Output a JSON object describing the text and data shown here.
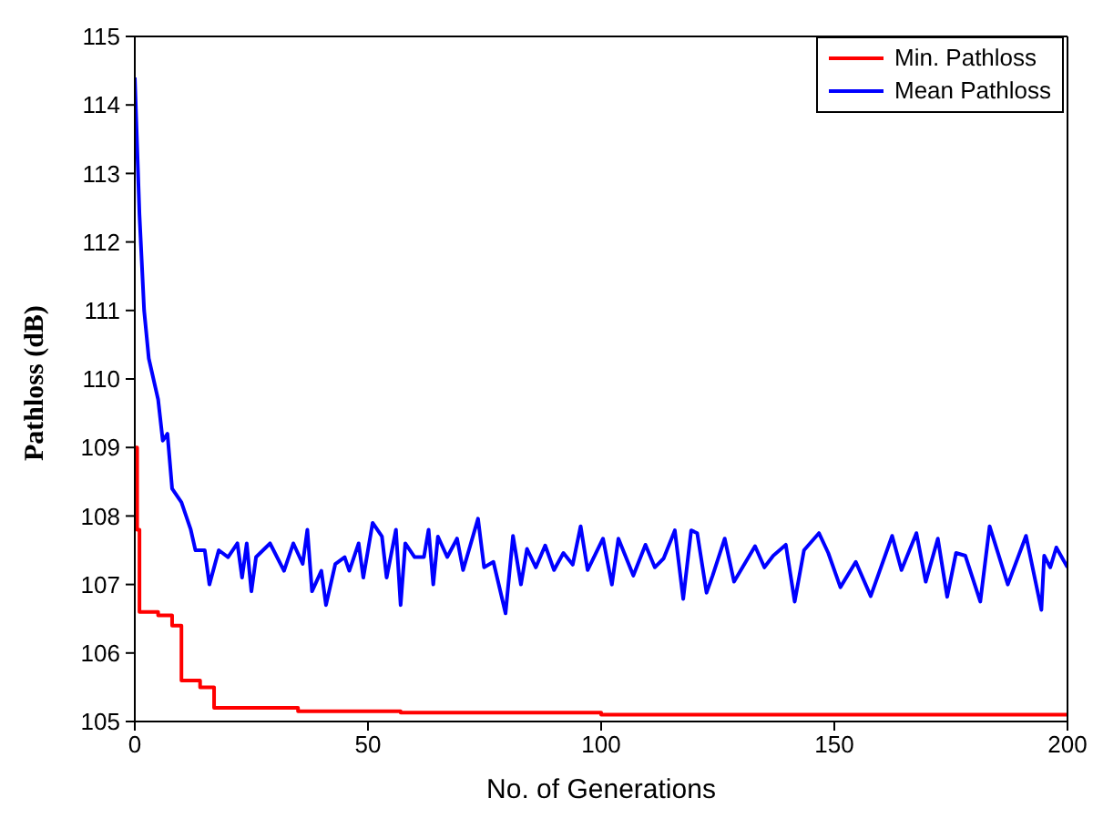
{
  "chart_data": {
    "type": "line",
    "xlabel": "No. of Generations",
    "ylabel": "Pathloss (dB)",
    "xlim": [
      0,
      200
    ],
    "xticks": [
      0,
      50,
      100,
      150,
      200
    ],
    "ylim": [
      105,
      115
    ],
    "yticks": [
      105,
      106,
      107,
      108,
      109,
      110,
      111,
      112,
      113,
      114,
      115
    ],
    "grid": false,
    "legend": "top right",
    "marker": "none",
    "line_style": "solid",
    "series": [
      {
        "name": "Min. Pathloss",
        "type": "step",
        "color": "#ff0000",
        "x": [
          0,
          0.5,
          1,
          5,
          8,
          10,
          14,
          17,
          35,
          57,
          100,
          200
        ],
        "values": [
          109,
          107.8,
          106.6,
          106.55,
          106.4,
          105.6,
          105.5,
          105.2,
          105.15,
          105.13,
          105.1,
          105.1
        ]
      },
      {
        "name": "Mean Pathloss",
        "color": "#0000ff",
        "x": [
          0,
          0.5,
          1,
          2,
          3,
          5,
          6,
          7,
          8,
          10,
          12,
          13,
          15,
          16,
          18,
          20,
          22,
          23,
          24,
          25,
          26,
          29,
          32,
          34,
          36,
          37,
          38,
          40,
          41,
          43,
          45,
          46,
          48,
          49,
          51,
          53,
          54,
          56,
          57,
          58,
          60,
          62,
          63,
          64,
          65,
          67,
          69.1,
          70.4,
          73.6,
          74.9,
          76.9,
          79.5,
          81.1,
          82.8,
          84.1,
          86,
          88,
          89.9,
          91.9,
          93.9,
          95.6,
          97.1,
          100.4,
          102.3,
          103.7,
          106.9,
          109.5,
          111.5,
          113.4,
          115.8,
          117.6,
          119.3,
          120.6,
          122.6,
          123.9,
          126.5,
          128.5,
          133,
          135,
          136.9,
          139.6,
          141.5,
          143.5,
          146.7,
          148.7,
          151.3,
          154.6,
          157.8,
          162.4,
          164.4,
          167.6,
          169.6,
          172.2,
          174.2,
          176.1,
          178.1,
          181.3,
          183.3,
          187.2,
          191.1,
          194.4,
          195,
          196.3,
          197.6,
          200
        ],
        "values": [
          114.4,
          113.4,
          112.4,
          111,
          110.3,
          109.7,
          109.1,
          109.2,
          108.4,
          108.2,
          107.8,
          107.5,
          107.5,
          107,
          107.5,
          107.4,
          107.6,
          107.1,
          107.6,
          106.9,
          107.4,
          107.6,
          107.2,
          107.6,
          107.3,
          107.8,
          106.9,
          107.2,
          106.7,
          107.3,
          107.4,
          107.2,
          107.6,
          107.1,
          107.9,
          107.7,
          107.1,
          107.8,
          106.7,
          107.6,
          107.4,
          107.4,
          107.8,
          107,
          107.7,
          107.4,
          107.67,
          107.21,
          107.96,
          107.25,
          107.33,
          106.58,
          107.71,
          107,
          107.52,
          107.25,
          107.57,
          107.21,
          107.46,
          107.29,
          107.85,
          107.21,
          107.67,
          107,
          107.67,
          107.13,
          107.58,
          107.25,
          107.38,
          107.79,
          106.79,
          107.79,
          107.75,
          106.88,
          107.13,
          107.67,
          107.04,
          107.56,
          107.25,
          107.42,
          107.58,
          106.75,
          107.5,
          107.75,
          107.46,
          106.96,
          107.33,
          106.83,
          107.71,
          107.21,
          107.75,
          107.04,
          107.67,
          106.82,
          107.46,
          107.42,
          106.75,
          107.85,
          107,
          107.71,
          106.63,
          107.42,
          107.25,
          107.54,
          107.25
        ]
      }
    ]
  }
}
